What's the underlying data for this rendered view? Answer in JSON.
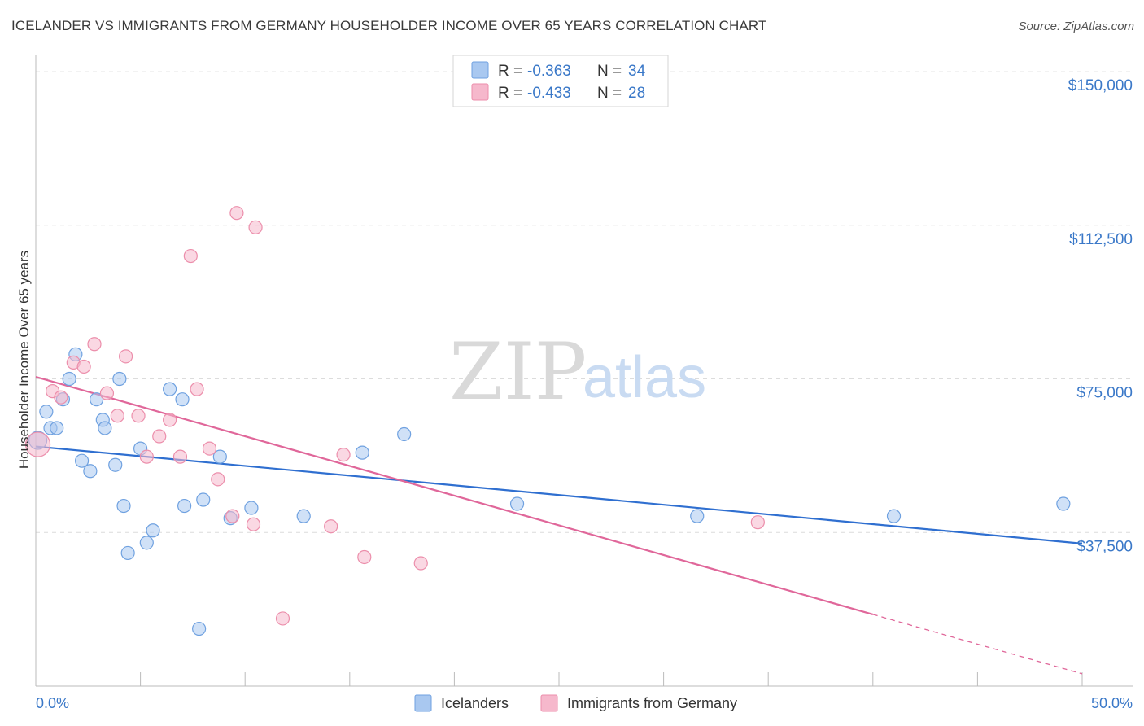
{
  "header": {
    "title": "ICELANDER VS IMMIGRANTS FROM GERMANY HOUSEHOLDER INCOME OVER 65 YEARS CORRELATION CHART",
    "source": "Source: ZipAtlas.com"
  },
  "watermark": {
    "zip": "ZIP",
    "atlas": "atlas"
  },
  "legend": {
    "rows": [
      {
        "r_label": "R =",
        "r_value": "-0.363",
        "n_label": "N =",
        "n_value": "34",
        "color": "#a9c8f0"
      },
      {
        "r_label": "R =",
        "r_value": "-0.433",
        "n_label": "N =",
        "n_value": "28",
        "color": "#f6b8cc"
      }
    ]
  },
  "chart_data": {
    "type": "scatter",
    "title": "ICELANDER VS IMMIGRANTS FROM GERMANY HOUSEHOLDER INCOME OVER 65 YEARS CORRELATION CHART",
    "xlabel": "",
    "ylabel": "Householder Income Over 65 years",
    "xlim": [
      0,
      50
    ],
    "ylim": [
      0,
      152000
    ],
    "x_tick_labels": [
      "0.0%",
      "50.0%"
    ],
    "y_ticks": [
      37500,
      75000,
      112500,
      150000
    ],
    "y_tick_labels": [
      "$37,500",
      "$75,000",
      "$112,500",
      "$150,000"
    ],
    "series": [
      {
        "name": "Icelanders",
        "color": "#a9c8f0",
        "stroke": "#6fa1e0",
        "line_color": "#2f6fd0",
        "points": [
          [
            0.1,
            60000
          ],
          [
            0.5,
            67000
          ],
          [
            0.7,
            63000
          ],
          [
            1.0,
            63000
          ],
          [
            1.3,
            70000
          ],
          [
            1.6,
            75000
          ],
          [
            1.9,
            81000
          ],
          [
            2.2,
            55000
          ],
          [
            2.6,
            52500
          ],
          [
            2.9,
            70000
          ],
          [
            3.2,
            65000
          ],
          [
            3.3,
            63000
          ],
          [
            3.8,
            54000
          ],
          [
            4.0,
            75000
          ],
          [
            4.2,
            44000
          ],
          [
            4.4,
            32500
          ],
          [
            5.0,
            58000
          ],
          [
            5.3,
            35000
          ],
          [
            5.6,
            38000
          ],
          [
            6.4,
            72500
          ],
          [
            7.0,
            70000
          ],
          [
            7.1,
            44000
          ],
          [
            7.8,
            14000
          ],
          [
            8.0,
            45500
          ],
          [
            8.8,
            56000
          ],
          [
            9.3,
            41000
          ],
          [
            10.3,
            43500
          ],
          [
            12.8,
            41500
          ],
          [
            15.6,
            57000
          ],
          [
            17.6,
            61500
          ],
          [
            23.0,
            44500
          ],
          [
            31.6,
            41500
          ],
          [
            41.0,
            41500
          ],
          [
            49.1,
            44500
          ]
        ],
        "trend": {
          "x": [
            0,
            50
          ],
          "y": [
            58500,
            34800
          ]
        }
      },
      {
        "name": "Immigrants from Germany",
        "color": "#f6b8cc",
        "stroke": "#ec8eab",
        "line_color": "#e0679a",
        "points": [
          [
            0.1,
            59000
          ],
          [
            0.8,
            72000
          ],
          [
            1.2,
            70500
          ],
          [
            1.8,
            79000
          ],
          [
            2.3,
            78000
          ],
          [
            2.8,
            83500
          ],
          [
            3.4,
            71500
          ],
          [
            3.9,
            66000
          ],
          [
            4.3,
            80500
          ],
          [
            4.9,
            66000
          ],
          [
            5.3,
            56000
          ],
          [
            5.9,
            61000
          ],
          [
            6.4,
            65000
          ],
          [
            6.9,
            56000
          ],
          [
            7.4,
            105000
          ],
          [
            7.7,
            72500
          ],
          [
            8.3,
            58000
          ],
          [
            8.7,
            50500
          ],
          [
            9.4,
            41500
          ],
          [
            9.6,
            115500
          ],
          [
            10.4,
            39500
          ],
          [
            10.5,
            112000
          ],
          [
            11.8,
            16500
          ],
          [
            14.1,
            39000
          ],
          [
            14.7,
            56500
          ],
          [
            15.7,
            31500
          ],
          [
            18.4,
            30000
          ],
          [
            34.5,
            40000
          ]
        ],
        "trend": {
          "x": [
            0,
            40
          ],
          "y": [
            75500,
            17500
          ]
        },
        "trend_dashed": {
          "x": [
            40,
            50
          ],
          "y": [
            17500,
            3000
          ]
        }
      }
    ]
  }
}
